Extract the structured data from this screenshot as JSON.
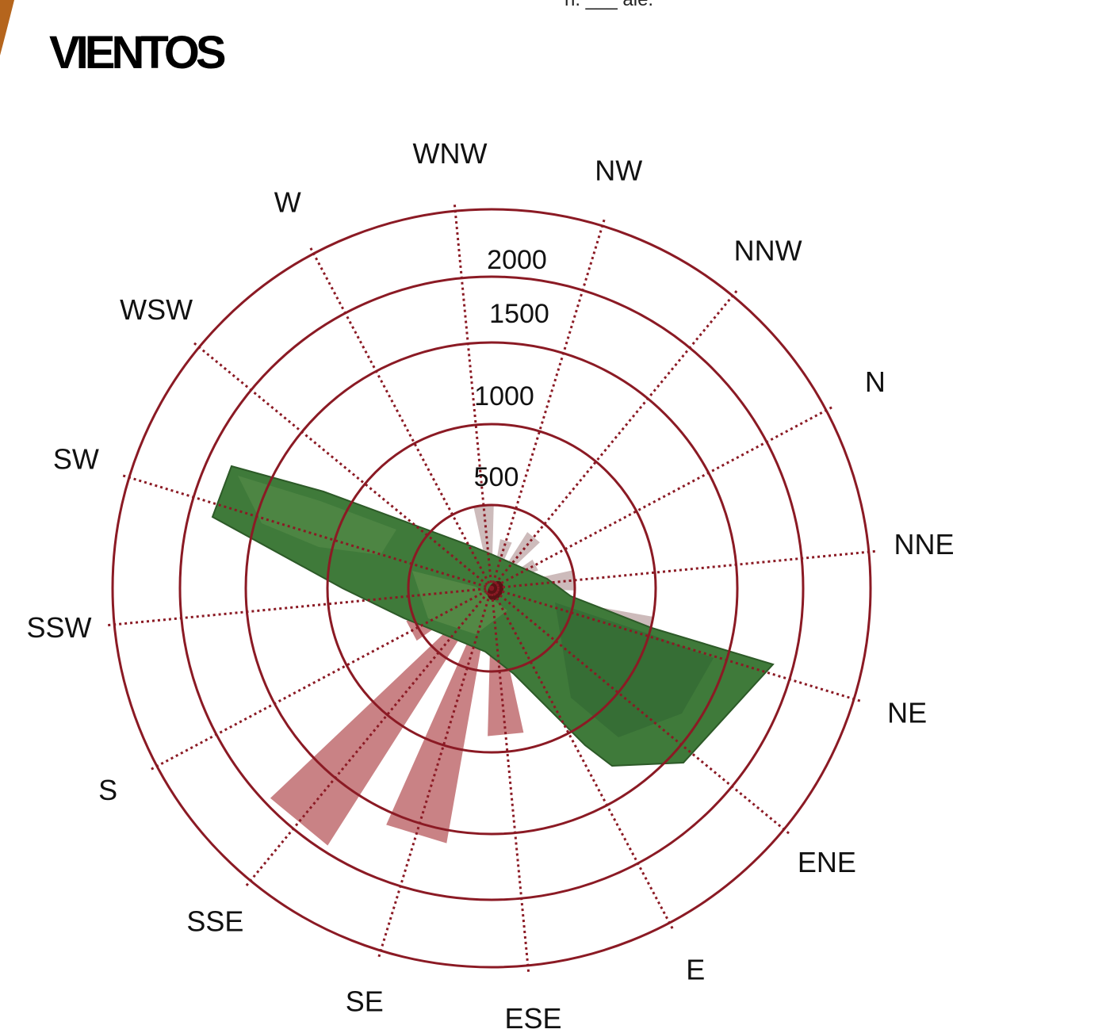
{
  "page": {
    "title": "VIENTOS",
    "top_fragment": "n. ___ ale."
  },
  "colors": {
    "ring": "#8b1a24",
    "spoke": "#8b1a24",
    "petal_light": "#c8b4b4",
    "petal_red": "#c37478",
    "overlay_green": "#3f7a3a",
    "accent": "#b5651d"
  },
  "chart_data": {
    "type": "polar-bar",
    "title": "",
    "ring_values": [
      500,
      1000,
      1500,
      2000
    ],
    "ring_labels": [
      "500",
      "1000",
      "1500",
      "2000"
    ],
    "directions": [
      "N",
      "NNE",
      "NE",
      "ENE",
      "E",
      "ESE",
      "SE",
      "SSE",
      "S",
      "SSW",
      "SW",
      "WSW",
      "W",
      "WNW",
      "NW",
      "NNW"
    ],
    "values": [
      300,
      500,
      1000,
      450,
      650,
      900,
      1600,
      1950,
      550,
      150,
      150,
      150,
      150,
      500,
      300,
      400
    ],
    "colors": [
      "light",
      "light",
      "light",
      "red",
      "red",
      "red",
      "red",
      "red",
      "red",
      "light",
      "light",
      "light",
      "light",
      "light",
      "light",
      "light"
    ],
    "overlay": "satellite-image-strip"
  }
}
